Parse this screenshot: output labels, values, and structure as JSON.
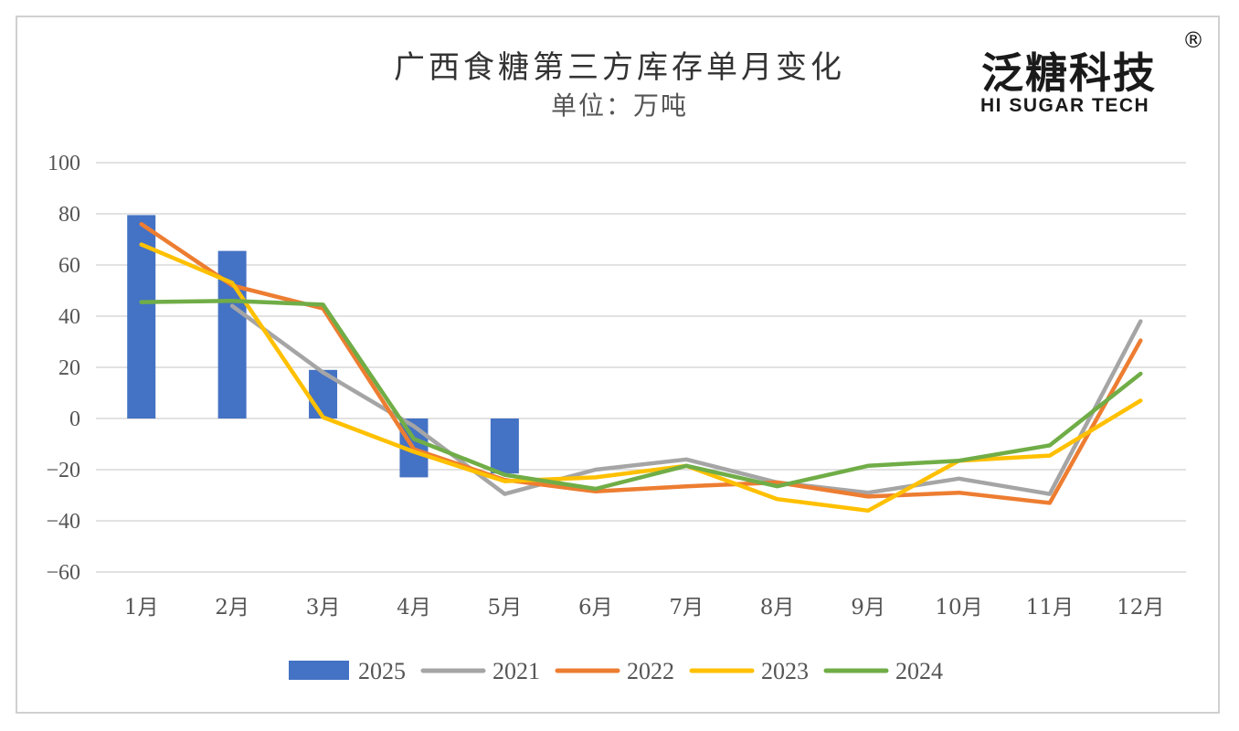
{
  "chart_data": {
    "type": "bar+line",
    "title": "广西食糖第三方库存单月变化",
    "subtitle": "单位：万吨",
    "categories": [
      "1月",
      "2月",
      "3月",
      "4月",
      "5月",
      "6月",
      "7月",
      "8月",
      "9月",
      "10月",
      "11月",
      "12月"
    ],
    "ylim": [
      -60,
      100
    ],
    "yticks": [
      100,
      80,
      60,
      40,
      20,
      0,
      -20,
      -40,
      -60
    ],
    "grid": true,
    "legend_position": "bottom",
    "bar_series": {
      "name": "2025",
      "color": "#4472C4",
      "values": [
        79.5,
        65.5,
        19,
        -23,
        -21.5,
        null,
        null,
        null,
        null,
        null,
        null,
        null
      ]
    },
    "series": [
      {
        "name": "2021",
        "color": "#A5A5A5",
        "values": [
          null,
          44,
          18,
          -3,
          -29.5,
          -20,
          -16,
          -25,
          -29,
          -23.5,
          -29.5,
          38
        ]
      },
      {
        "name": "2022",
        "color": "#ED7D31",
        "values": [
          76,
          52,
          43,
          -12,
          -24,
          -28.5,
          -26.5,
          -25,
          -30.5,
          -29,
          -33,
          30.5
        ]
      },
      {
        "name": "2023",
        "color": "#FFC000",
        "values": [
          68,
          53,
          0.5,
          -13,
          -24.5,
          -23,
          -18.5,
          -31.5,
          -36,
          -16.5,
          -14.5,
          7
        ]
      },
      {
        "name": "2024",
        "color": "#70AD47",
        "values": [
          45.5,
          46,
          44.5,
          -8,
          -22,
          -27.5,
          -18.5,
          -26.5,
          -18.5,
          -16.5,
          -10.5,
          17.5
        ]
      }
    ],
    "legend_order": [
      "2025",
      "2021",
      "2022",
      "2023",
      "2024"
    ]
  },
  "logo": {
    "cn": "泛糖科技",
    "reg": "®",
    "en": "HI SUGAR TECH"
  }
}
